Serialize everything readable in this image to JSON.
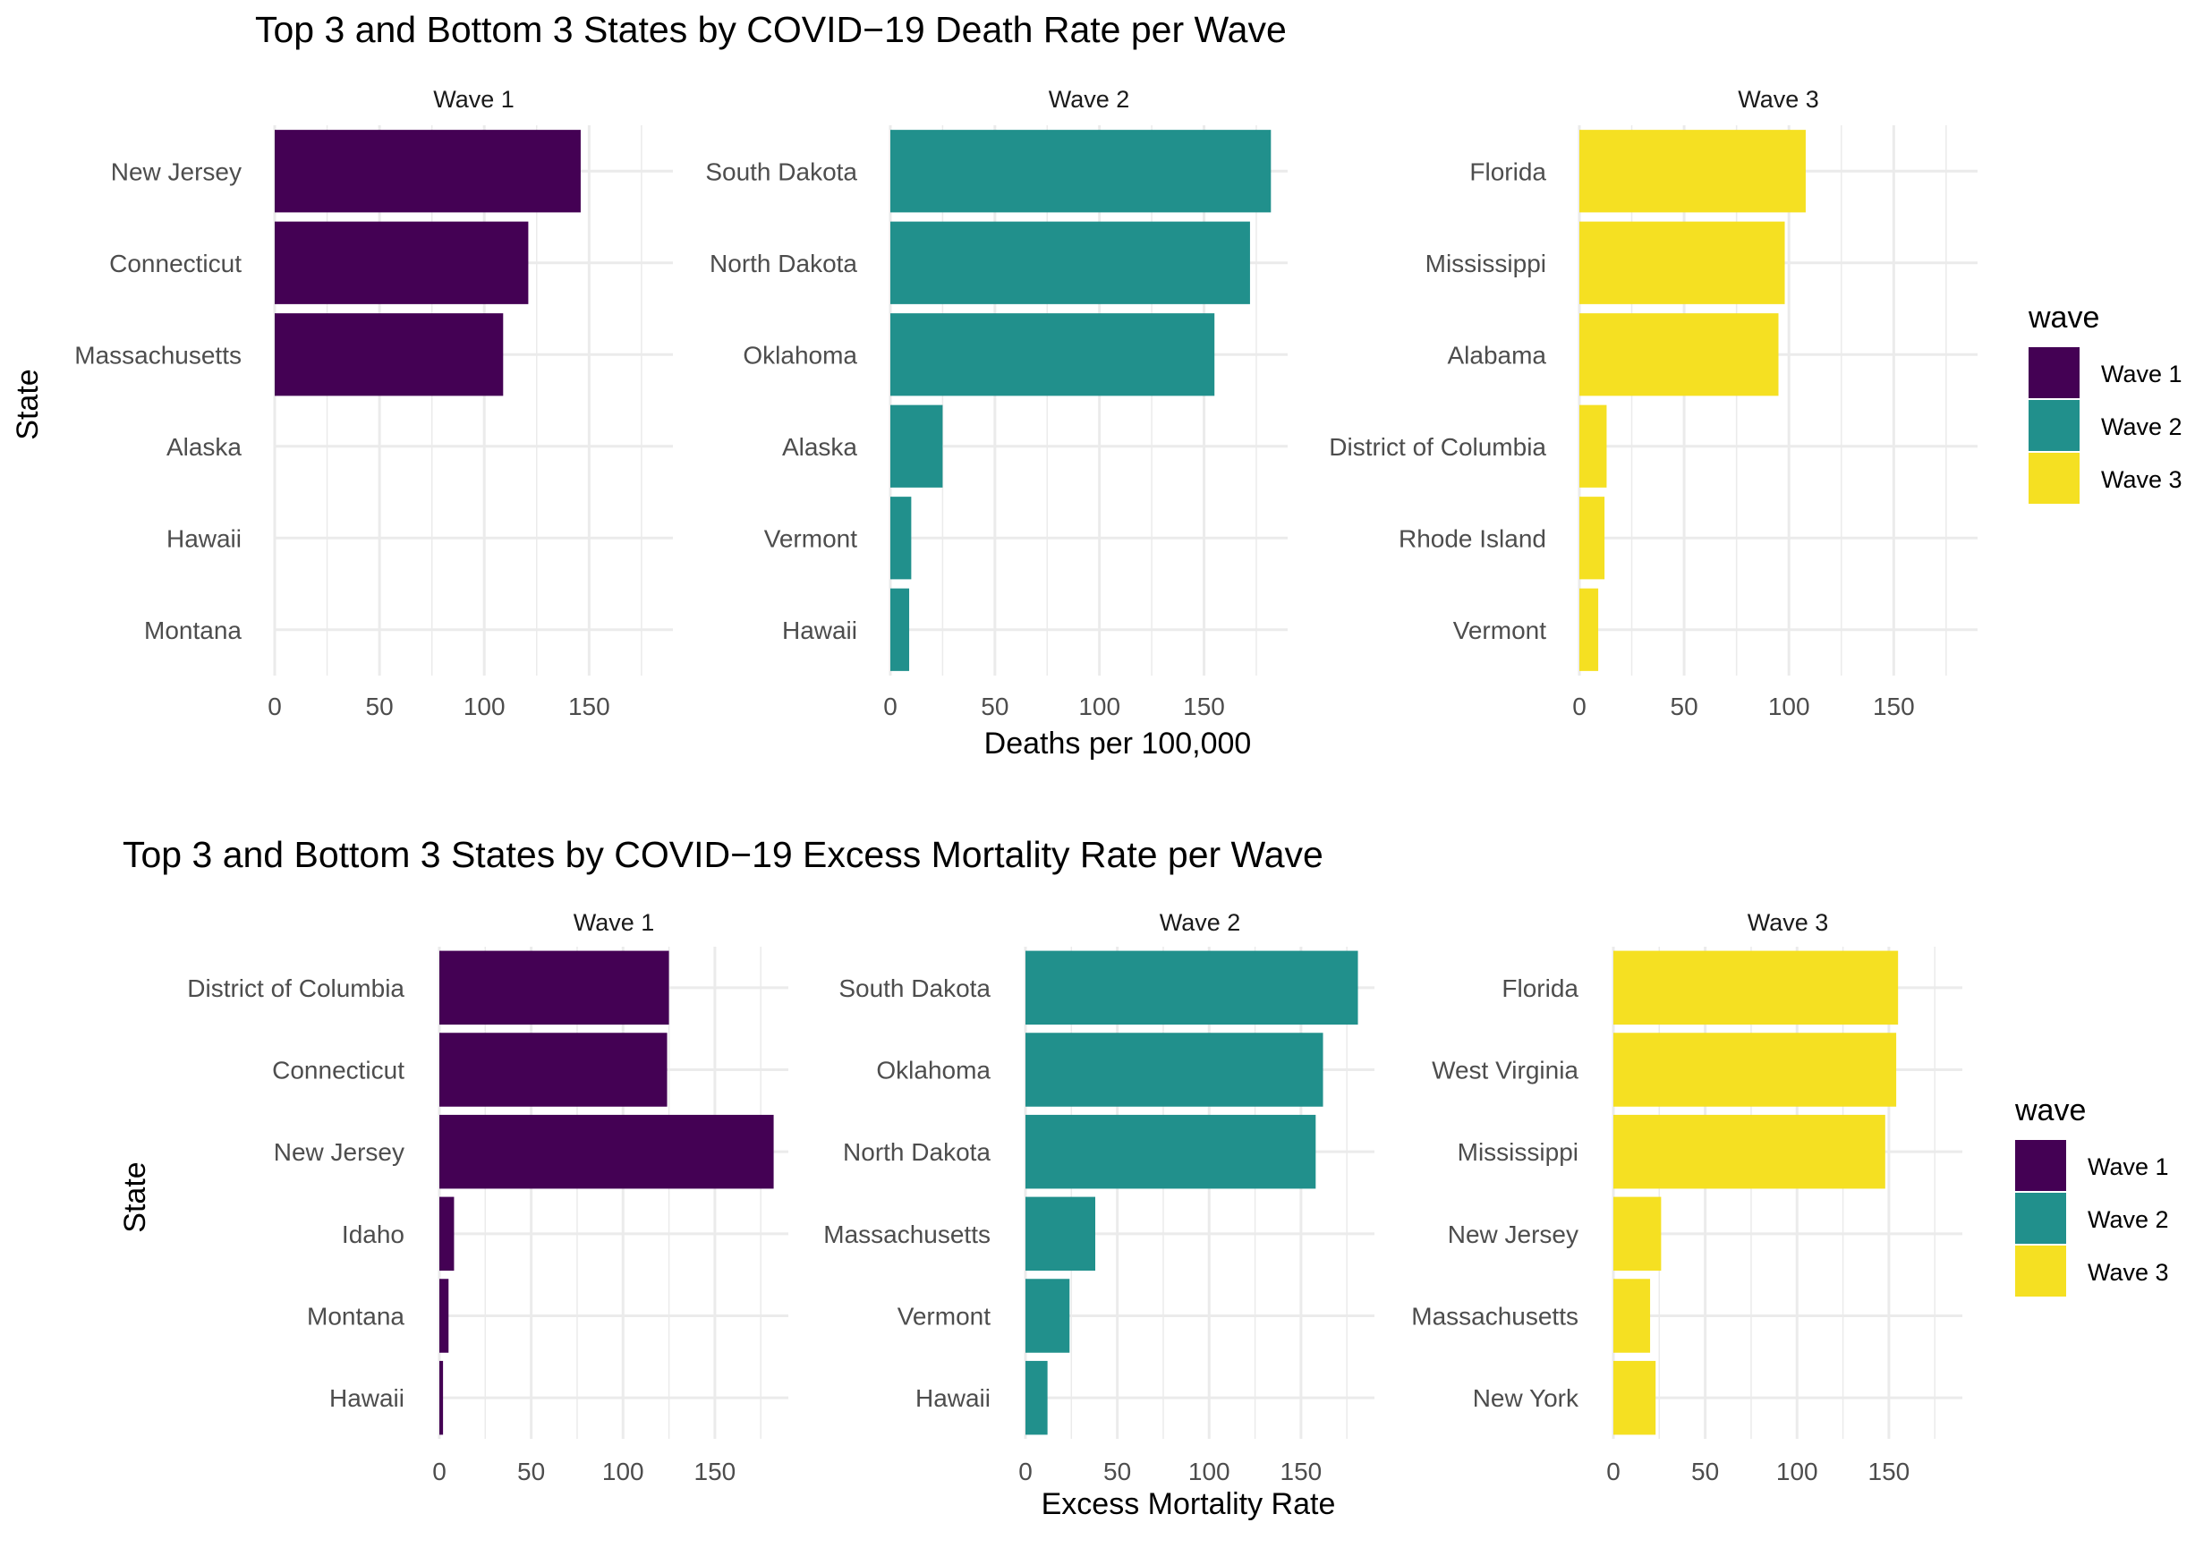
{
  "colors": {
    "Wave 1": "#440154",
    "Wave 2": "#21908C",
    "Wave 3": "#F5E022",
    "grid": "#EBEBEB"
  },
  "chart_data": [
    {
      "type": "bar",
      "orientation": "horizontal",
      "faceted": true,
      "title": "Top 3 and Bottom 3 States by COVID−19 Death Rate per Wave",
      "xlabel": "Deaths per 100,000",
      "ylabel": "State",
      "xlim": [
        0,
        190
      ],
      "xticks": [
        0,
        50,
        100,
        150
      ],
      "grid": true,
      "legend": {
        "title": "wave",
        "position": "right",
        "entries": [
          "Wave 1",
          "Wave 2",
          "Wave 3"
        ]
      },
      "panels": [
        {
          "strip": "Wave 1",
          "wave": "Wave 1",
          "categories": [
            "New Jersey",
            "Connecticut",
            "Massachusetts",
            "Alaska",
            "Hawaii",
            "Montana"
          ],
          "values": [
            146,
            121,
            109,
            0,
            0,
            0
          ]
        },
        {
          "strip": "Wave 2",
          "wave": "Wave 2",
          "categories": [
            "South Dakota",
            "North Dakota",
            "Oklahoma",
            "Alaska",
            "Vermont",
            "Hawaii"
          ],
          "values": [
            182,
            172,
            155,
            25,
            10,
            9
          ]
        },
        {
          "strip": "Wave 3",
          "wave": "Wave 3",
          "categories": [
            "Florida",
            "Mississippi",
            "Alabama",
            "District of Columbia",
            "Rhode Island",
            "Vermont"
          ],
          "values": [
            108,
            98,
            95,
            13,
            12,
            9
          ]
        }
      ]
    },
    {
      "type": "bar",
      "orientation": "horizontal",
      "faceted": true,
      "title": "Top 3 and Bottom 3 States by COVID−19 Excess Mortality Rate per Wave",
      "xlabel": "Excess Mortality Rate",
      "ylabel": "State",
      "xlim": [
        0,
        190
      ],
      "xticks": [
        0,
        50,
        100,
        150
      ],
      "grid": true,
      "legend": {
        "title": "wave",
        "position": "right",
        "entries": [
          "Wave 1",
          "Wave 2",
          "Wave 3"
        ]
      },
      "panels": [
        {
          "strip": "Wave 1",
          "wave": "Wave 1",
          "categories": [
            "District of Columbia",
            "Connecticut",
            "New Jersey",
            "Idaho",
            "Montana",
            "Hawaii"
          ],
          "values": [
            125,
            124,
            182,
            8,
            5,
            2
          ]
        },
        {
          "strip": "Wave 2",
          "wave": "Wave 2",
          "categories": [
            "South Dakota",
            "Oklahoma",
            "North Dakota",
            "Massachusetts",
            "Vermont",
            "Hawaii"
          ],
          "values": [
            181,
            162,
            158,
            38,
            24,
            12
          ]
        },
        {
          "strip": "Wave 3",
          "wave": "Wave 3",
          "categories": [
            "Florida",
            "West Virginia",
            "Mississippi",
            "New Jersey",
            "Massachusetts",
            "New York"
          ],
          "values": [
            155,
            154,
            148,
            26,
            20,
            23
          ]
        }
      ]
    }
  ]
}
